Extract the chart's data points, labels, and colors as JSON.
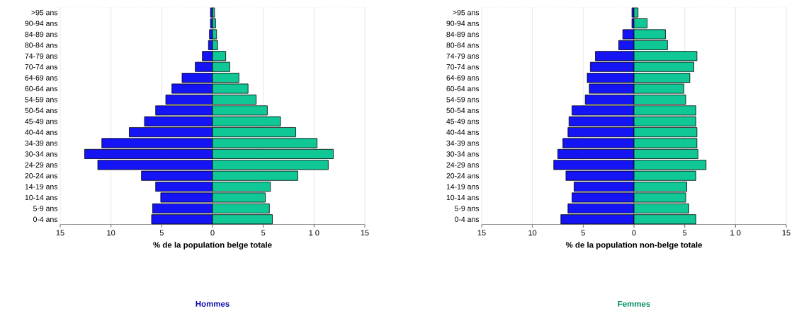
{
  "chart_data": [
    {
      "type": "bar",
      "orientation": "horizontal",
      "stacked": true,
      "xlabel": "% de la population belge totale",
      "grid": "x",
      "legend": "bottom",
      "categories": [
        ">95 ans",
        "90-94 ans",
        "84-89 ans",
        "80-84 ans",
        "74-79 ans",
        "70-74 ans",
        "64-69 ans",
        "60-64 ans",
        "54-59 ans",
        "50-54 ans",
        "45-49 ans",
        "40-44 ans",
        "34-39 ans",
        "30-34 ans",
        "24-29 ans",
        "20-24 ans",
        "14-19 ans",
        "10-14 ans",
        "5-9 ans",
        "0-4 ans"
      ],
      "xlim": [
        -15,
        15
      ],
      "xticks": [
        {
          "value": -15,
          "label": "15"
        },
        {
          "value": -10,
          "label": "10"
        },
        {
          "value": -5,
          "label": "5"
        },
        0,
        5,
        {
          "value": 10,
          "label": "1 0"
        },
        15
      ],
      "series": [
        {
          "name": "Hommes",
          "color": "#1414f5",
          "values": [
            -0.2,
            -0.2,
            -0.3,
            -0.4,
            -1.0,
            -1.7,
            -3.0,
            -4.0,
            -4.6,
            -5.6,
            -6.7,
            -8.2,
            -10.9,
            -12.6,
            -11.3,
            -7.0,
            -5.6,
            -5.1,
            -5.9,
            -6.0
          ]
        },
        {
          "name": "Femmes",
          "color": "#0fc896",
          "values": [
            0.2,
            0.3,
            0.4,
            0.5,
            1.3,
            1.7,
            2.6,
            3.5,
            4.3,
            5.4,
            6.7,
            8.2,
            10.3,
            11.9,
            11.4,
            8.4,
            5.7,
            5.2,
            5.6,
            5.9
          ]
        }
      ]
    },
    {
      "type": "bar",
      "orientation": "horizontal",
      "stacked": true,
      "xlabel": "% de la population non-belge totale",
      "grid": "x",
      "categories": [
        ">95 ans",
        "90-94 ans",
        "84-89 ans",
        "80-84 ans",
        "74-79 ans",
        "70-74 ans",
        "64-69 ans",
        "60-64 ans",
        "54-59 ans",
        "50-54 ans",
        "45-49 ans",
        "40-44 ans",
        "34-39 ans",
        "30-34 ans",
        "24-29 ans",
        "20-24 ans",
        "14-19 ans",
        "10-14 ans",
        "5-9 ans",
        "0-4 ans"
      ],
      "xlim": [
        -15,
        15
      ],
      "xticks": [
        {
          "value": -15,
          "label": "15"
        },
        {
          "value": -10,
          "label": "10"
        },
        {
          "value": -5,
          "label": "5"
        },
        0,
        5,
        {
          "value": 10,
          "label": "1 0"
        },
        15
      ],
      "series": [
        {
          "color": "#1414f5",
          "values": [
            -0.2,
            -0.2,
            -1.1,
            -1.5,
            -3.8,
            -4.3,
            -4.6,
            -4.4,
            -4.8,
            -6.1,
            -6.4,
            -6.5,
            -7.0,
            -7.5,
            -7.9,
            -6.7,
            -5.9,
            -6.1,
            -6.5,
            -7.2
          ]
        },
        {
          "color": "#0fc896",
          "values": [
            0.4,
            1.3,
            3.1,
            3.3,
            6.2,
            5.9,
            5.5,
            4.9,
            5.1,
            6.1,
            6.1,
            6.2,
            6.2,
            6.3,
            7.1,
            6.1,
            5.2,
            5.1,
            5.4,
            6.1
          ]
        }
      ]
    }
  ]
}
